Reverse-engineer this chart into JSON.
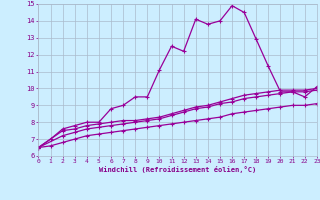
{
  "xlabel": "Windchill (Refroidissement éolien,°C)",
  "background_color": "#cceeff",
  "grid_color": "#aabbcc",
  "line_color": "#990099",
  "xlim": [
    0,
    23
  ],
  "ylim": [
    6,
    15
  ],
  "xticks": [
    0,
    1,
    2,
    3,
    4,
    5,
    6,
    7,
    8,
    9,
    10,
    11,
    12,
    13,
    14,
    15,
    16,
    17,
    18,
    19,
    20,
    21,
    22,
    23
  ],
  "yticks": [
    6,
    7,
    8,
    9,
    10,
    11,
    12,
    13,
    14,
    15
  ],
  "series1_x": [
    0,
    1,
    2,
    3,
    4,
    5,
    6,
    7,
    8,
    9,
    10,
    11,
    12,
    13,
    14,
    15,
    16,
    17,
    18,
    19,
    20,
    21,
    22,
    23
  ],
  "series1_y": [
    6.5,
    7.0,
    7.6,
    7.8,
    8.0,
    8.0,
    8.8,
    9.0,
    9.5,
    9.5,
    11.1,
    12.5,
    12.2,
    14.1,
    13.8,
    14.0,
    14.9,
    14.5,
    12.9,
    11.3,
    9.8,
    9.8,
    9.5,
    10.1
  ],
  "series2_x": [
    0,
    2,
    3,
    4,
    5,
    6,
    7,
    8,
    9,
    10,
    11,
    12,
    13,
    14,
    15,
    16,
    17,
    18,
    19,
    20,
    21,
    22,
    23
  ],
  "series2_y": [
    6.5,
    7.5,
    7.6,
    7.8,
    7.9,
    8.0,
    8.1,
    8.1,
    8.2,
    8.3,
    8.5,
    8.7,
    8.9,
    9.0,
    9.2,
    9.4,
    9.6,
    9.7,
    9.8,
    9.9,
    9.9,
    9.9,
    10.0
  ],
  "series3_x": [
    0,
    2,
    3,
    4,
    5,
    6,
    7,
    8,
    9,
    10,
    11,
    12,
    13,
    14,
    15,
    16,
    17,
    18,
    19,
    20,
    21,
    22,
    23
  ],
  "series3_y": [
    6.5,
    7.2,
    7.4,
    7.6,
    7.7,
    7.8,
    7.9,
    8.0,
    8.1,
    8.2,
    8.4,
    8.6,
    8.8,
    8.9,
    9.1,
    9.2,
    9.4,
    9.5,
    9.6,
    9.7,
    9.8,
    9.8,
    9.9
  ],
  "series4_x": [
    0,
    1,
    2,
    3,
    4,
    5,
    6,
    7,
    8,
    9,
    10,
    11,
    12,
    13,
    14,
    15,
    16,
    17,
    18,
    19,
    20,
    21,
    22,
    23
  ],
  "series4_y": [
    6.5,
    6.6,
    6.8,
    7.0,
    7.2,
    7.3,
    7.4,
    7.5,
    7.6,
    7.7,
    7.8,
    7.9,
    8.0,
    8.1,
    8.2,
    8.3,
    8.5,
    8.6,
    8.7,
    8.8,
    8.9,
    9.0,
    9.0,
    9.1
  ]
}
